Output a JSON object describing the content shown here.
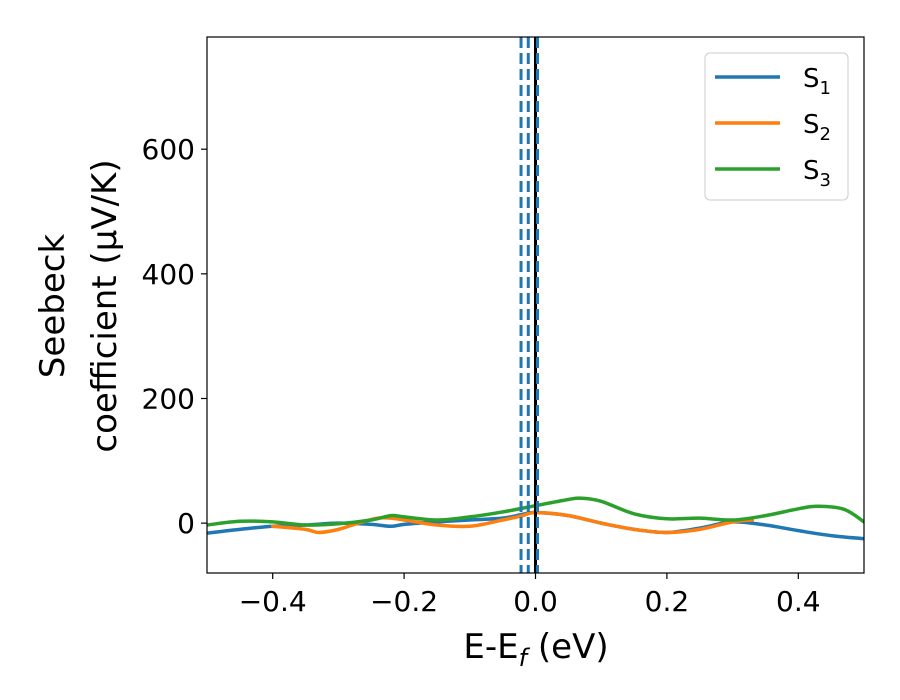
{
  "chart_data": {
    "type": "line",
    "xlabel": "E-E",
    "xlabel_sub": "f",
    "xlabel_unit": " (eV)",
    "ylabel_line1": "Seebeck",
    "ylabel_line2": "coefficient  (μV/K)",
    "xlim": [
      -0.5,
      0.5
    ],
    "ylim": [
      -80,
      780
    ],
    "xticks": [
      -0.4,
      -0.2,
      0.0,
      0.2,
      0.4
    ],
    "xtick_labels": [
      "−0.4",
      "−0.2",
      "0.0",
      "0.2",
      "0.4"
    ],
    "yticks": [
      0,
      200,
      400,
      600
    ],
    "ytick_labels": [
      "0",
      "200",
      "400",
      "600"
    ],
    "grid": false,
    "legend_position": "top-right",
    "series": [
      {
        "name": "S",
        "name_sub": "1",
        "color": "#1f77b4",
        "x": [
          -0.5,
          -0.45,
          -0.4,
          -0.35,
          -0.3,
          -0.25,
          -0.22,
          -0.2,
          -0.15,
          -0.1,
          -0.05,
          -0.02,
          0.0,
          0.05,
          0.1,
          0.15,
          0.2,
          0.25,
          0.3,
          0.35,
          0.4,
          0.45,
          0.5
        ],
        "y": [
          -16,
          -10,
          -5,
          -3,
          0,
          -2,
          -5,
          -2,
          2,
          5,
          8,
          14,
          17,
          12,
          0,
          -10,
          -15,
          -8,
          2,
          -3,
          -12,
          -20,
          -25
        ]
      },
      {
        "name": "S",
        "name_sub": "2",
        "color": "#ff7f0e",
        "x": [
          -0.4,
          -0.35,
          -0.33,
          -0.3,
          -0.27,
          -0.24,
          -0.22,
          -0.2,
          -0.15,
          -0.1,
          -0.05,
          -0.02,
          0.0,
          0.05,
          0.1,
          0.15,
          0.2,
          0.25,
          0.3,
          0.33
        ],
        "y": [
          -5,
          -10,
          -15,
          -10,
          0,
          8,
          8,
          5,
          -3,
          -5,
          5,
          12,
          17,
          12,
          0,
          -10,
          -15,
          -10,
          2,
          5
        ]
      },
      {
        "name": "S",
        "name_sub": "3",
        "color": "#2ca02c",
        "x": [
          -0.5,
          -0.45,
          -0.4,
          -0.35,
          -0.3,
          -0.25,
          -0.22,
          -0.2,
          -0.15,
          -0.1,
          -0.05,
          0.0,
          0.05,
          0.07,
          0.1,
          0.15,
          0.2,
          0.25,
          0.3,
          0.35,
          0.4,
          0.43,
          0.47,
          0.5
        ],
        "y": [
          -3,
          3,
          2,
          -3,
          -1,
          5,
          12,
          10,
          5,
          10,
          18,
          28,
          38,
          40,
          35,
          15,
          7,
          8,
          5,
          12,
          23,
          27,
          22,
          2
        ]
      }
    ],
    "vlines": [
      {
        "x": -0.022,
        "color": "#1f77b4",
        "style": "dashed"
      },
      {
        "x": -0.011,
        "color": "#1f77b4",
        "style": "dashed"
      },
      {
        "x": 0.0,
        "color": "#000000",
        "style": "solid"
      },
      {
        "x": 0.003,
        "color": "#1f77b4",
        "style": "dashed"
      }
    ]
  }
}
